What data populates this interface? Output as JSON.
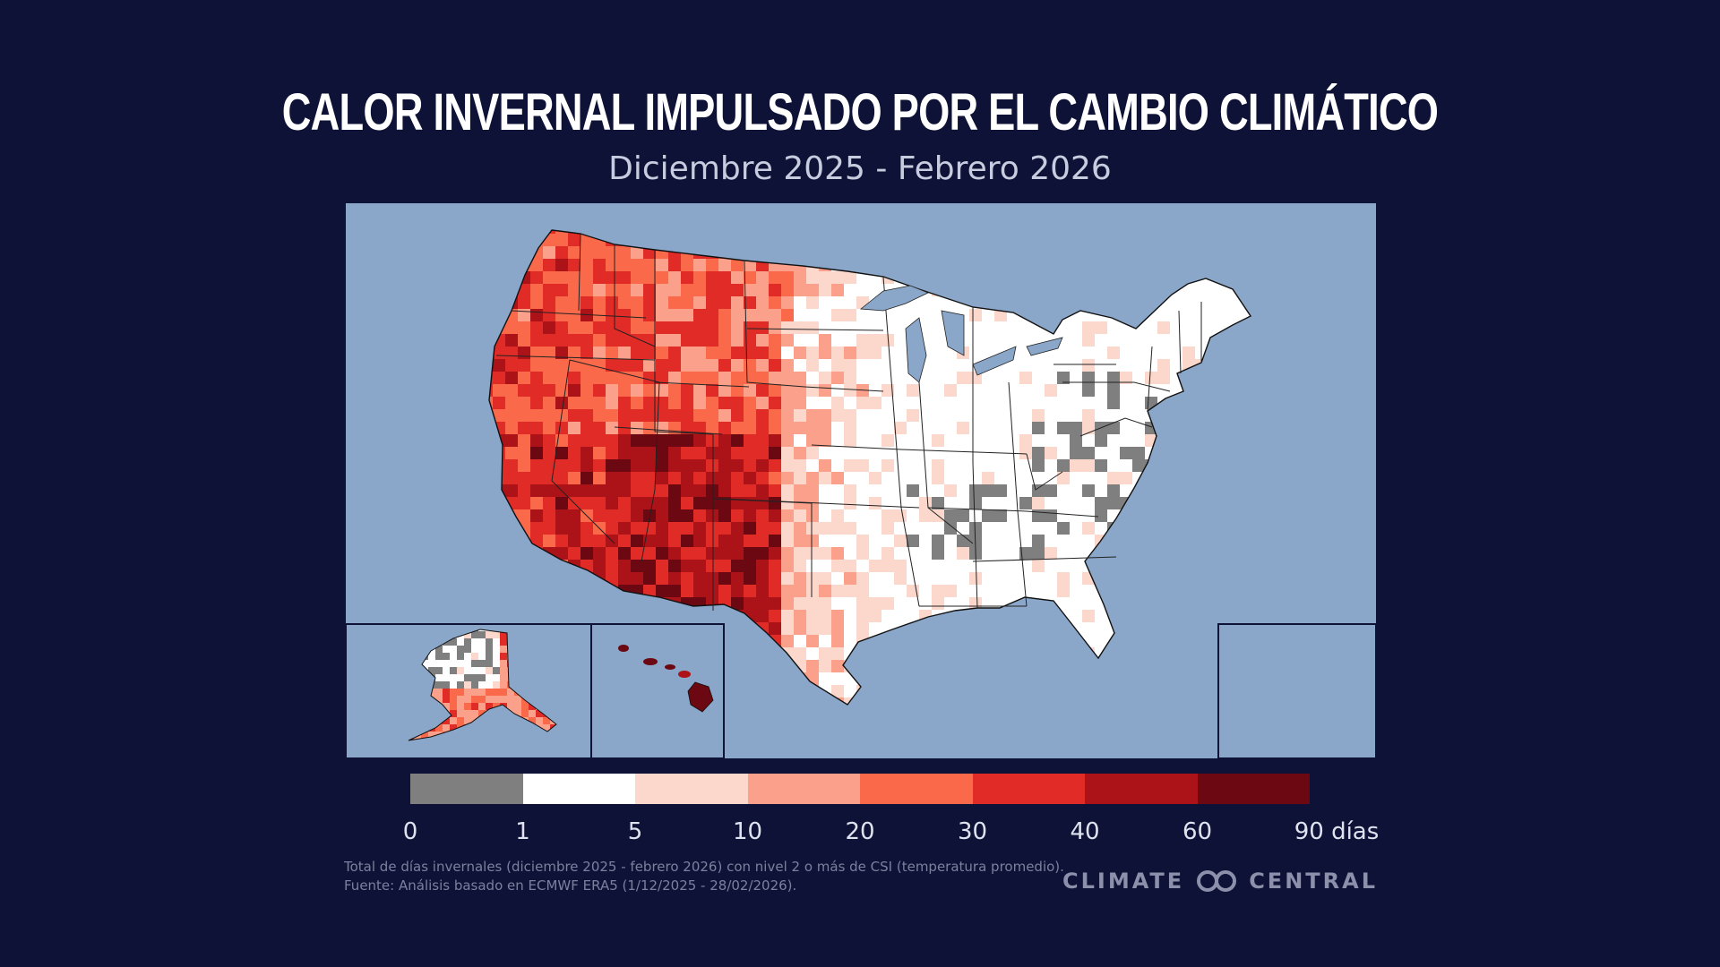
{
  "title": "CALOR INVERNAL IMPULSADO POR EL CAMBIO CLIMÁTICO",
  "subtitle": "Diciembre 2025 - Febrero 2026",
  "legend": {
    "labels": [
      "0",
      "1",
      "5",
      "10",
      "20",
      "30",
      "40",
      "60",
      "90 días"
    ],
    "colors": [
      "#7f7f7f",
      "#ffffff",
      "#fcd7cb",
      "#fba08a",
      "#fb694b",
      "#e12b27",
      "#ac1318",
      "#6b0812"
    ]
  },
  "footnote": {
    "line1": "Total de días invernales (diciembre 2025 - febrero 2026) con nivel 2 o más de CSI (temperatura promedio).",
    "line2": "Fuente: Análisis basado en ECMWF ERA5 (1/12/2025 - 28/02/2026)."
  },
  "brand": {
    "left": "CLIMATE",
    "right": "CENTRAL"
  },
  "map": {
    "ocean_color": "#8aa6c8",
    "inset_border": "#0e1236"
  }
}
